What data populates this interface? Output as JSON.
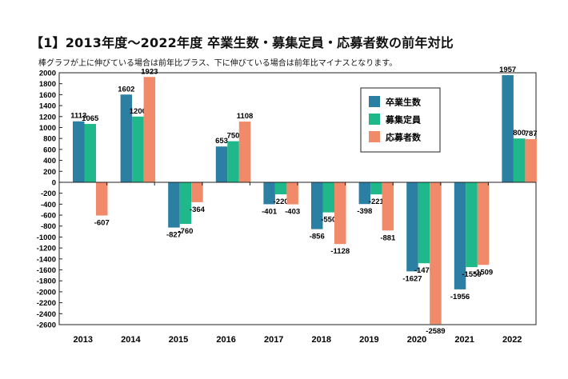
{
  "title": "【1】2013年度〜2022年度 卒業生数・募集定員・応募者数の前年対比",
  "subtitle": "棒グラフが上に伸びている場合は前年比プラス、下に伸びている場合は前年比マイナスとなります。",
  "chart_data": {
    "type": "bar",
    "categories": [
      "2013",
      "2014",
      "2015",
      "2016",
      "2017",
      "2018",
      "2019",
      "2020",
      "2021",
      "2022"
    ],
    "series": [
      {
        "name": "卒業生数",
        "color": "#2a7fa3",
        "values": [
          1113,
          1602,
          -827,
          653,
          -401,
          -856,
          -398,
          -1627,
          -1956,
          1957
        ]
      },
      {
        "name": "募集定員",
        "color": "#1fb88a",
        "values": [
          1065,
          1200,
          -760,
          750,
          -220,
          -550,
          -221,
          -1479,
          -1550,
          800
        ]
      },
      {
        "name": "応募者数",
        "color": "#f08a68",
        "values": [
          -607,
          1923,
          -364,
          1108,
          -403,
          -1128,
          -881,
          -2589,
          -1509,
          787
        ]
      }
    ],
    "ylim": [
      -2600,
      2000
    ],
    "ytick_step": 200,
    "grid": false,
    "legend_position": "top-right"
  }
}
